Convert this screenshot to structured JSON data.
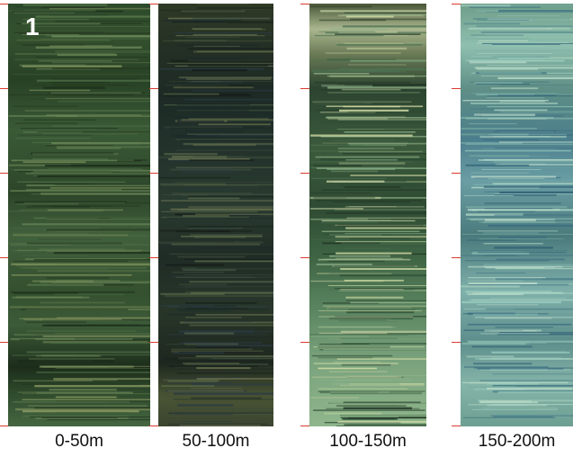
{
  "panel_label": "1",
  "captions": [
    "0-50m",
    "50-100m",
    "100-150m",
    "150-200m"
  ]
}
